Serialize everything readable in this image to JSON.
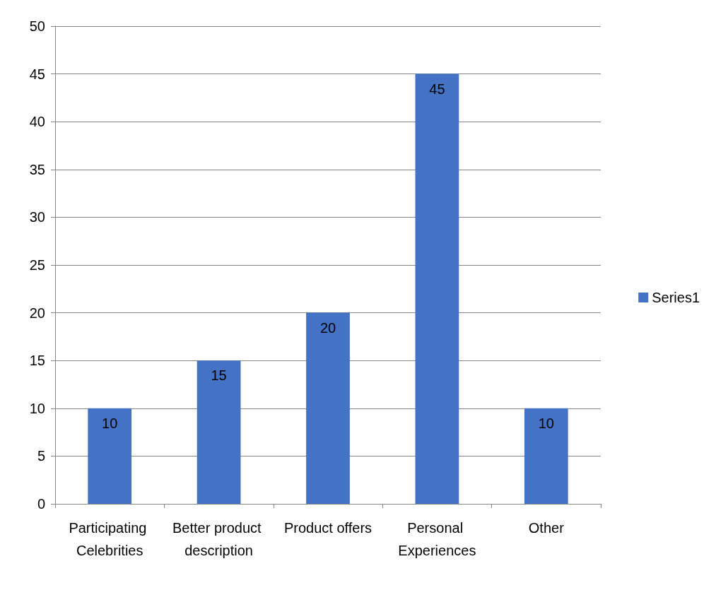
{
  "chart_data": {
    "type": "bar",
    "categories": [
      "Participating Celebrities",
      "Better product description",
      "Product offers",
      "Personal Experiences",
      "Other"
    ],
    "series": [
      {
        "name": "Series1",
        "color": "#4472c4",
        "values": [
          10,
          15,
          20,
          45,
          10
        ]
      }
    ],
    "ylim": [
      0,
      50
    ],
    "yticks": [
      0,
      5,
      10,
      15,
      20,
      25,
      30,
      35,
      40,
      45,
      50
    ],
    "grid": "y",
    "legend": "right",
    "data_labels": true
  }
}
